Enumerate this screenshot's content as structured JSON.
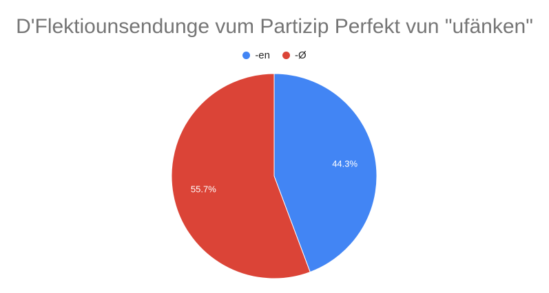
{
  "chart_data": {
    "type": "pie",
    "title": "D'Flektiounsendunge vum Partizip Perfekt vun \"ufänken\"",
    "legend_position": "top",
    "slices": [
      {
        "name": "-en",
        "value": 44.3,
        "label": "44.3%",
        "color": "#4285f4"
      },
      {
        "name": "-Ø",
        "value": 55.7,
        "label": "55.7%",
        "color": "#db4437"
      }
    ]
  }
}
